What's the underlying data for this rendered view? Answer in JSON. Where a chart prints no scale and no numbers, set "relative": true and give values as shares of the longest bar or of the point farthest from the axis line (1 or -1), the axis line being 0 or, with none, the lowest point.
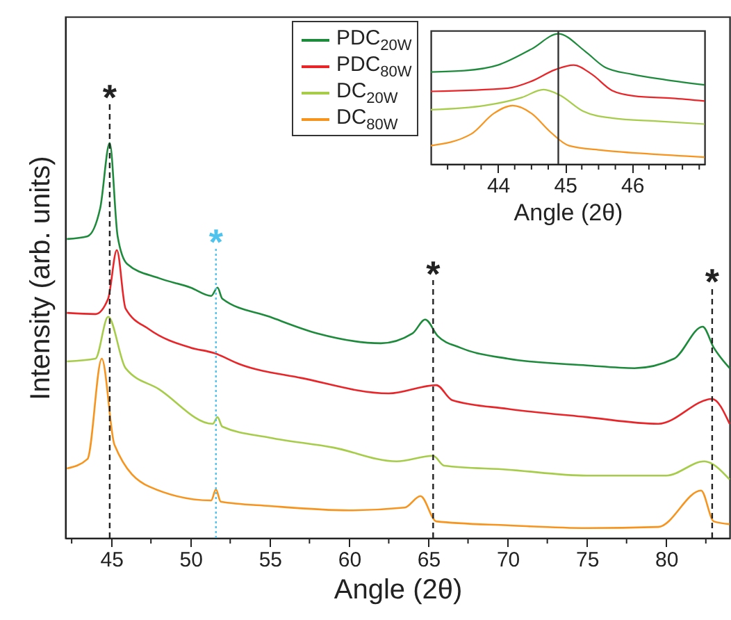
{
  "chart_data": [
    {
      "type": "line",
      "xlabel": "Angle (2θ)",
      "ylabel": "Intensity (arb. units)",
      "relative": true,
      "legend": "top",
      "xlim": [
        42.1,
        84
      ],
      "xticks": [
        {
          "value": 42.5,
          "label": null
        },
        45,
        {
          "value": 47.5,
          "label": null
        },
        50,
        {
          "value": 52.5,
          "label": null
        },
        55,
        {
          "value": 57.5,
          "label": null
        },
        60,
        {
          "value": 62.5,
          "label": null
        },
        65,
        {
          "value": 67.5,
          "label": null
        },
        70,
        {
          "value": 72.5,
          "label": null
        },
        75,
        {
          "value": 77.5,
          "label": null
        },
        80,
        {
          "value": 82.5,
          "label": null
        }
      ],
      "series": [
        {
          "name": "PDC$_{20W}$",
          "color": "#1e8a3c",
          "x": [
            42.2,
            43.5,
            44.3,
            44.9,
            45.4,
            46,
            48,
            50,
            51.3,
            51.7,
            52,
            55,
            58,
            62,
            64,
            64.8,
            65.6,
            67,
            70,
            75,
            78,
            80.5,
            82.3,
            83,
            84
          ],
          "values": [
            0.757,
            0.764,
            0.835,
            1,
            0.764,
            0.694,
            0.658,
            0.634,
            0.613,
            0.634,
            0.606,
            0.56,
            0.518,
            0.493,
            0.518,
            0.553,
            0.511,
            0.482,
            0.454,
            0.437,
            0.43,
            0.454,
            0.535,
            0.482,
            0.43
          ]
        },
        {
          "name": "PDC$_{80W}$",
          "color": "#e8262a",
          "x": [
            42.2,
            44,
            44.8,
            45.35,
            45.9,
            47.4,
            50,
            51.5,
            53.1,
            57,
            62.5,
            65.5,
            66.5,
            70,
            75,
            79.5,
            82.9,
            84
          ],
          "values": [
            0.57,
            0.567,
            0.606,
            0.729,
            0.581,
            0.528,
            0.482,
            0.468,
            0.44,
            0.405,
            0.366,
            0.387,
            0.349,
            0.327,
            0.306,
            0.289,
            0.352,
            0.289
          ]
        },
        {
          "name": "DC$_{20W}$",
          "color": "#a6cc4a",
          "x": [
            42.2,
            44,
            44.8,
            45.9,
            48,
            51.4,
            51.7,
            52,
            55,
            59,
            63,
            65.3,
            66,
            70,
            75,
            80,
            82.4,
            84
          ],
          "values": [
            0.447,
            0.454,
            0.56,
            0.43,
            0.377,
            0.289,
            0.306,
            0.282,
            0.254,
            0.229,
            0.194,
            0.208,
            0.183,
            0.173,
            0.158,
            0.158,
            0.194,
            0.148
          ]
        },
        {
          "name": "DC$_{80W}$",
          "color": "#f7941d",
          "x": [
            42.2,
            43.5,
            44.4,
            45.2,
            47.4,
            51.3,
            51.6,
            51.9,
            55,
            60,
            63.5,
            64.5,
            65.5,
            70,
            75,
            79.5,
            82.2,
            83,
            84
          ],
          "values": [
            0.176,
            0.2,
            0.454,
            0.236,
            0.13,
            0.095,
            0.123,
            0.092,
            0.081,
            0.07,
            0.077,
            0.106,
            0.042,
            0.032,
            0.025,
            0.028,
            0.12,
            0.042,
            0.035
          ]
        }
      ],
      "ref_lines": [
        {
          "axis": "x",
          "value": 44.9,
          "label": "*",
          "color": "#222222",
          "line_style": "dashed"
        },
        {
          "axis": "x",
          "value": 51.6,
          "label": "*",
          "color": "#4dc3ee",
          "line_style": "dotted"
        },
        {
          "axis": "x",
          "value": 65.3,
          "label": "*",
          "color": "#222222",
          "line_style": "dashed"
        },
        {
          "axis": "x",
          "value": 82.9,
          "label": "*",
          "color": "#222222",
          "line_style": "dashed"
        }
      ]
    },
    {
      "type": "line",
      "xlabel": "Angle (2θ)",
      "relative": true,
      "xlim": [
        43,
        47.08
      ],
      "xticks": [
        {
          "value": 43.25,
          "label": null
        },
        {
          "value": 43.5,
          "label": null
        },
        {
          "value": 43.75,
          "label": null
        },
        44,
        {
          "value": 44.25,
          "label": null
        },
        {
          "value": 44.5,
          "label": null
        },
        {
          "value": 44.75,
          "label": null
        },
        45,
        {
          "value": 45.25,
          "label": null
        },
        {
          "value": 45.5,
          "label": null
        },
        {
          "value": 45.75,
          "label": null
        },
        46,
        {
          "value": 46.25,
          "label": null
        },
        {
          "value": 46.5,
          "label": null
        },
        {
          "value": 46.75,
          "label": null
        },
        {
          "value": 47,
          "label": null
        }
      ],
      "series": [
        {
          "color": "#1e8a3c",
          "x": [
            43,
            43.5,
            44,
            44.5,
            44.9,
            45.3,
            45.6,
            46,
            46.5,
            47.08
          ],
          "values": [
            0.707,
            0.717,
            0.76,
            0.883,
            1,
            0.866,
            0.742,
            0.689,
            0.647,
            0.608
          ]
        },
        {
          "color": "#e8262a",
          "x": [
            43,
            44.15,
            44.5,
            44.85,
            45.13,
            45.4,
            45.7,
            46.03,
            46.6,
            47.08
          ],
          "values": [
            0.558,
            0.583,
            0.636,
            0.724,
            0.76,
            0.689,
            0.565,
            0.523,
            0.505,
            0.484
          ]
        },
        {
          "color": "#a6cc4a",
          "x": [
            43,
            43.8,
            44.36,
            44.68,
            44.92,
            45.27,
            45.7,
            46.38,
            47.08
          ],
          "values": [
            0.417,
            0.449,
            0.512,
            0.572,
            0.53,
            0.406,
            0.353,
            0.329,
            0.307
          ]
        },
        {
          "color": "#f7941d",
          "x": [
            43,
            43.6,
            43.94,
            44.22,
            44.5,
            44.78,
            45.06,
            45.55,
            46.25,
            47.08
          ],
          "values": [
            0.141,
            0.23,
            0.389,
            0.449,
            0.389,
            0.247,
            0.141,
            0.106,
            0.078,
            0.053
          ]
        }
      ],
      "ref_lines": [
        {
          "axis": "x",
          "value": 44.9,
          "color": "#333333",
          "line_style": "solid"
        }
      ]
    }
  ]
}
